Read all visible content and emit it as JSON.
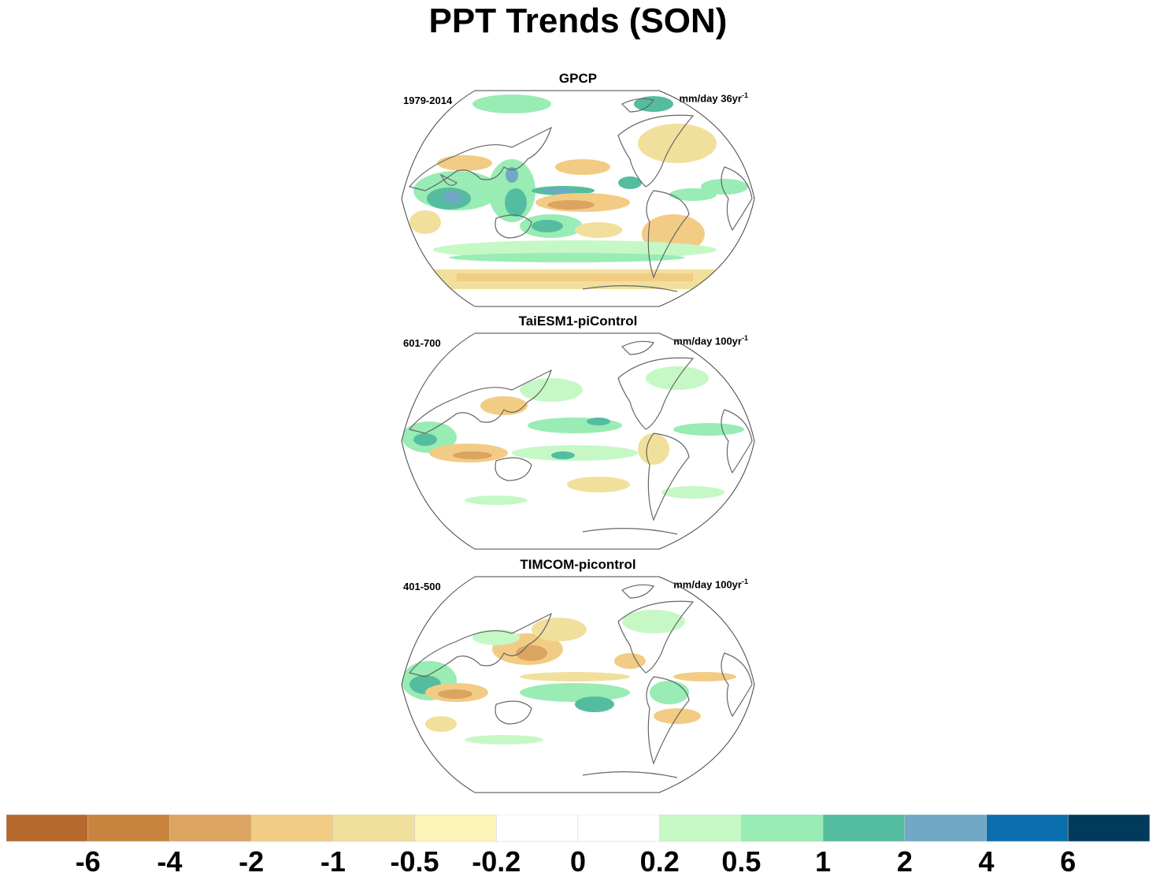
{
  "title": "PPT Trends (SON)",
  "panels": [
    {
      "title": "GPCP",
      "period": "1979-2014",
      "units": "mm/day 36yr",
      "units_sup": "-1"
    },
    {
      "title": "TaiESM1-piControl",
      "period": "601-700",
      "units": "mm/day 100yr",
      "units_sup": "-1"
    },
    {
      "title": "TIMCOM-picontrol",
      "period": "401-500",
      "units": "mm/day 100yr",
      "units_sup": "-1"
    }
  ],
  "colorbar": {
    "colors": [
      "#b5692d",
      "#c8833f",
      "#dca461",
      "#f2cc84",
      "#f1e09c",
      "#fcf3b9",
      "#ffffff",
      "#ffffff",
      "#c6f8c6",
      "#98ecb4",
      "#55bd9f",
      "#70a8c6",
      "#0b6fae",
      "#023a5b"
    ],
    "tick_labels": [
      "-6",
      "-4",
      "-2",
      "-1",
      "-0.5",
      "-0.2",
      "0",
      "0.2",
      "0.5",
      "1",
      "2",
      "4",
      "6"
    ]
  },
  "chart_data": {
    "type": "heatmap",
    "title": "PPT Trends (SON)",
    "projection": "Robinson (Pacific-centred global)",
    "levels": [
      -6,
      -4,
      -2,
      -1,
      -0.5,
      -0.2,
      0,
      0.2,
      0.5,
      1,
      2,
      4,
      6
    ],
    "maps": [
      {
        "name": "GPCP",
        "period": "1979-2014",
        "units": "mm/day 36yr-1",
        "features": [
          "positive trend (1 to 4) over Maritime Continent and eastern Indian Ocean",
          "negative trend (-2 to -1) band across central equatorial Pacific",
          "positive trend band in Southern Ocean near 45-55S",
          "negative trend (-1 to -0.5) near 60S Southern Ocean"
        ]
      },
      {
        "name": "TaiESM1-piControl",
        "period": "601-700",
        "units": "mm/day 100yr-1",
        "features": [
          "weak positive trend over western Indian Ocean",
          "weak negative trend over south-eastern Indian Ocean",
          "mixed weak trends across tropical Pacific"
        ]
      },
      {
        "name": "TIMCOM-picontrol",
        "period": "401-500",
        "units": "mm/day 100yr-1",
        "features": [
          "positive trend over western Indian Ocean",
          "negative trend (-2 to -1) over south-eastern Indian Ocean",
          "positive trend along South Pacific convergence zone",
          "weak negative trend in North Pacific"
        ]
      }
    ]
  }
}
